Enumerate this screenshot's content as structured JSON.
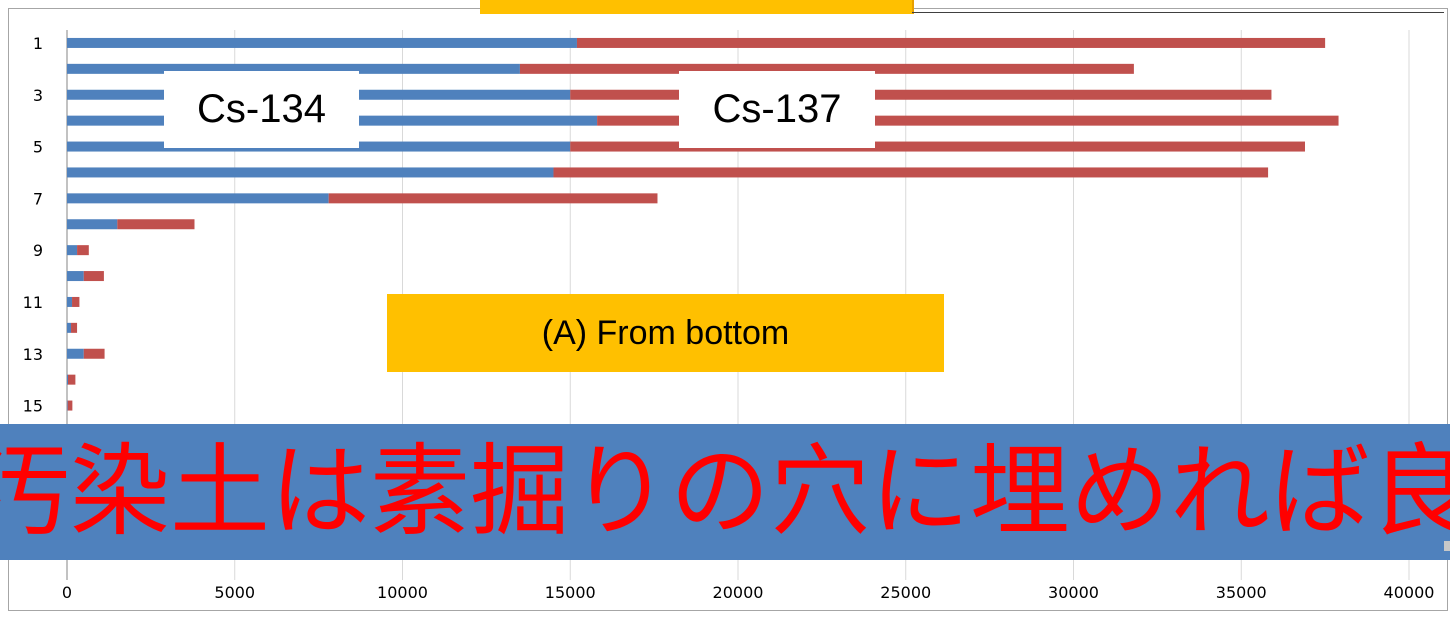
{
  "chart_data": {
    "type": "bar",
    "orientation": "horizontal",
    "stacked": true,
    "categories": [
      "1",
      "2",
      "3",
      "4",
      "5",
      "6",
      "7",
      "8",
      "9",
      "10",
      "11",
      "12",
      "13",
      "14",
      "15",
      "16"
    ],
    "y_tick_labels_shown": [
      "1",
      "3",
      "5",
      "7",
      "9",
      "11",
      "13",
      "15"
    ],
    "series": [
      {
        "name": "Cs-134",
        "color": "#4f81bd",
        "values": [
          15200,
          13500,
          15000,
          15800,
          15000,
          14500,
          7800,
          1500,
          300,
          500,
          150,
          120,
          500,
          30,
          20,
          10
        ]
      },
      {
        "name": "Cs-137",
        "color": "#c0504d",
        "values": [
          22300,
          18300,
          20900,
          22100,
          21900,
          21300,
          9800,
          2300,
          350,
          600,
          220,
          180,
          620,
          220,
          140,
          60
        ]
      }
    ],
    "x_ticks": [
      "0",
      "5000",
      "10000",
      "15000",
      "20000",
      "25000",
      "30000",
      "35000",
      "40000"
    ],
    "xlim": [
      0,
      40000
    ],
    "grid": "vertical",
    "annotations": [
      "Cs-134",
      "Cs-137"
    ]
  },
  "annotation_box": {
    "text": "(A) From bottom",
    "color": "#ffc000"
  },
  "banner": {
    "text": "汚染土は素掘りの穴に埋めれば良い",
    "background": "#4f81bd",
    "text_color": "#ff0000"
  }
}
